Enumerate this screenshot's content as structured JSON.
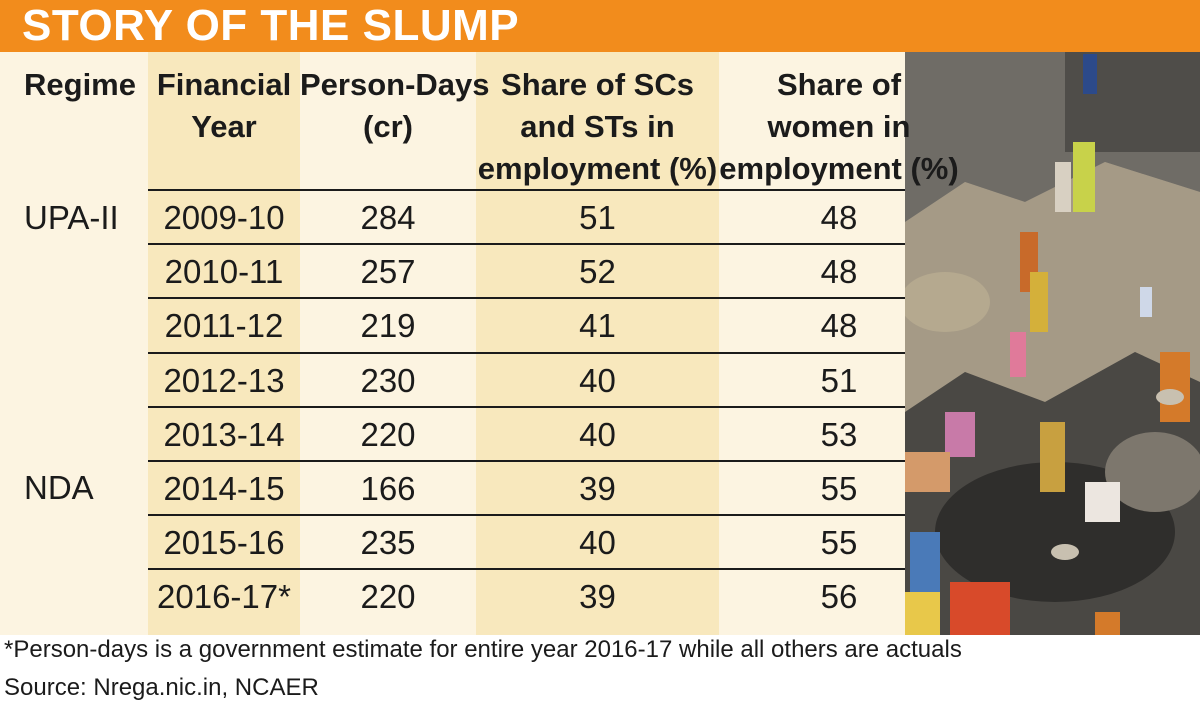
{
  "title": "STORY OF THE SLUMP",
  "chart_data": {
    "type": "table",
    "columns": [
      "Regime",
      "Financial Year",
      "Person-Days (cr)",
      "Share of SCs and STs in employment (%)",
      "Share of women in employment (%)"
    ],
    "header_lines": [
      [
        "Regime"
      ],
      [
        "Financial",
        "Year"
      ],
      [
        "Person-Days",
        "(cr)"
      ],
      [
        "Share of SCs",
        "and STs in",
        "employment (%)"
      ],
      [
        "Share of",
        "women in",
        "employment (%)"
      ]
    ],
    "regime_groups": [
      {
        "label": "UPA-II",
        "years": [
          "2009-10",
          "2010-11",
          "2011-12",
          "2012-13",
          "2013-14"
        ]
      },
      {
        "label": "NDA",
        "years": [
          "2014-15",
          "2015-16",
          "2016-17*"
        ]
      }
    ],
    "rows": [
      {
        "regime": "UPA-II",
        "year": "2009-10",
        "person_days": "284",
        "sc_st_share": "51",
        "women_share": "48"
      },
      {
        "regime": "UPA-II",
        "year": "2010-11",
        "person_days": "257",
        "sc_st_share": "52",
        "women_share": "48"
      },
      {
        "regime": "UPA-II",
        "year": "2011-12",
        "person_days": "219",
        "sc_st_share": "41",
        "women_share": "48"
      },
      {
        "regime": "UPA-II",
        "year": "2012-13",
        "person_days": "230",
        "sc_st_share": "40",
        "women_share": "51"
      },
      {
        "regime": "UPA-II",
        "year": "2013-14",
        "person_days": "220",
        "sc_st_share": "40",
        "women_share": "53"
      },
      {
        "regime": "NDA",
        "year": "2014-15",
        "person_days": "166",
        "sc_st_share": "39",
        "women_share": "55"
      },
      {
        "regime": "NDA",
        "year": "2015-16",
        "person_days": "235",
        "sc_st_share": "40",
        "women_share": "55"
      },
      {
        "regime": "NDA",
        "year": "2016-17*",
        "person_days": "220",
        "sc_st_share": "39",
        "women_share": "56"
      }
    ]
  },
  "footnote": "*Person-days is a government estimate for entire year 2016-17 while all others are actuals",
  "source": "Source: Nrega.nic.in, NCAER",
  "colors": {
    "banner": "#f28c1c",
    "panel": "#fcf4e1",
    "shaded_column": "#f8e8bd",
    "text": "#1b1b1b"
  }
}
